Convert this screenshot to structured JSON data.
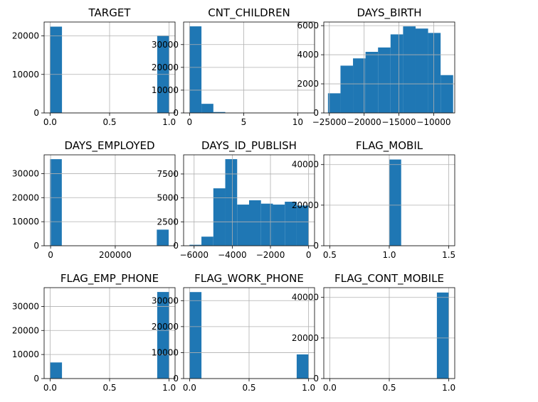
{
  "chart_data": [
    {
      "type": "bar",
      "title": "TARGET",
      "grid": true,
      "xlim": [
        -0.05,
        1.05
      ],
      "ylim": [
        0,
        23600
      ],
      "xticks": [
        {
          "value": 0,
          "label": "0.0"
        },
        {
          "value": 0.5,
          "label": "0.5"
        },
        {
          "value": 1,
          "label": "1.0"
        }
      ],
      "yticks": [
        {
          "value": 0,
          "label": "0"
        },
        {
          "value": 10000,
          "label": "10000"
        },
        {
          "value": 20000,
          "label": "20000"
        }
      ],
      "bins": [
        {
          "x0": 0,
          "x1": 0.1,
          "value": 22400
        },
        {
          "x0": 0.9,
          "x1": 1,
          "value": 20100
        }
      ]
    },
    {
      "type": "bar",
      "title": "CNT_CHILDREN",
      "grid": true,
      "xlim": [
        -0.55,
        11.55
      ],
      "ylim": [
        0,
        39900
      ],
      "xticks": [
        {
          "value": 0,
          "label": "0"
        },
        {
          "value": 5,
          "label": "5"
        },
        {
          "value": 10,
          "label": "10"
        }
      ],
      "yticks": [
        {
          "value": 0,
          "label": "0"
        },
        {
          "value": 10000,
          "label": "10000"
        },
        {
          "value": 20000,
          "label": "20000"
        },
        {
          "value": 30000,
          "label": "30000"
        }
      ],
      "bins": [
        {
          "x0": 0,
          "x1": 1.1,
          "value": 38000
        },
        {
          "x0": 1.1,
          "x1": 2.2,
          "value": 4000
        },
        {
          "x0": 2.2,
          "x1": 3.3,
          "value": 400
        },
        {
          "x0": 3.3,
          "x1": 4.4,
          "value": 40
        }
      ]
    },
    {
      "type": "bar",
      "title": "DAYS_BIRTH",
      "grid": true,
      "xlim": [
        -25800,
        -6970
      ],
      "ylim": [
        0,
        6250
      ],
      "xticks": [
        {
          "value": -25000,
          "label": "−25000"
        },
        {
          "value": -20000,
          "label": "−20000"
        },
        {
          "value": -15000,
          "label": "−15000"
        },
        {
          "value": -10000,
          "label": "−10000"
        }
      ],
      "yticks": [
        {
          "value": 0,
          "label": "0"
        },
        {
          "value": 2000,
          "label": "2000"
        },
        {
          "value": 4000,
          "label": "4000"
        },
        {
          "value": 6000,
          "label": "6000"
        }
      ],
      "bins": [
        {
          "x0": -25200,
          "x1": -23400,
          "value": 1350
        },
        {
          "x0": -23400,
          "x1": -21600,
          "value": 3250
        },
        {
          "x0": -21600,
          "x1": -19800,
          "value": 3750
        },
        {
          "x0": -19800,
          "x1": -18000,
          "value": 4200
        },
        {
          "x0": -18000,
          "x1": -16200,
          "value": 4500
        },
        {
          "x0": -16200,
          "x1": -14400,
          "value": 5400
        },
        {
          "x0": -14400,
          "x1": -12600,
          "value": 5950
        },
        {
          "x0": -12600,
          "x1": -10800,
          "value": 5800
        },
        {
          "x0": -10800,
          "x1": -9000,
          "value": 5500
        },
        {
          "x0": -9000,
          "x1": -7200,
          "value": 2600
        }
      ]
    },
    {
      "type": "bar",
      "title": "DAYS_EMPLOYED",
      "grid": true,
      "xlim": [
        -20000,
        385000
      ],
      "ylim": [
        0,
        37800
      ],
      "xticks": [
        {
          "value": 0,
          "label": "0"
        },
        {
          "value": 200000,
          "label": "200000"
        }
      ],
      "yticks": [
        {
          "value": 0,
          "label": "0"
        },
        {
          "value": 10000,
          "label": "10000"
        },
        {
          "value": 20000,
          "label": "20000"
        },
        {
          "value": 30000,
          "label": "30000"
        }
      ],
      "bins": [
        {
          "x0": -1900,
          "x1": 34700,
          "value": 36000
        },
        {
          "x0": 328500,
          "x1": 365200,
          "value": 6700
        }
      ]
    },
    {
      "type": "bar",
      "title": "DAYS_ID_PUBLISH",
      "grid": true,
      "xlim": [
        -6550,
        310
      ],
      "ylim": [
        0,
        9500
      ],
      "xticks": [
        {
          "value": -6000,
          "label": "−6000"
        },
        {
          "value": -4000,
          "label": "−4000"
        },
        {
          "value": -2000,
          "label": "−2000"
        },
        {
          "value": 0,
          "label": "0"
        }
      ],
      "yticks": [
        {
          "value": 0,
          "label": "0"
        },
        {
          "value": 2500,
          "label": "2500"
        },
        {
          "value": 5000,
          "label": "5000"
        },
        {
          "value": 7500,
          "label": "7500"
        }
      ],
      "bins": [
        {
          "x0": -6240,
          "x1": -5616,
          "value": 100
        },
        {
          "x0": -5616,
          "x1": -4992,
          "value": 950
        },
        {
          "x0": -4992,
          "x1": -4368,
          "value": 6000
        },
        {
          "x0": -4368,
          "x1": -3744,
          "value": 9050
        },
        {
          "x0": -3744,
          "x1": -3120,
          "value": 4300
        },
        {
          "x0": -3120,
          "x1": -2496,
          "value": 4750
        },
        {
          "x0": -2496,
          "x1": -1872,
          "value": 4400
        },
        {
          "x0": -1872,
          "x1": -1248,
          "value": 4300
        },
        {
          "x0": -1248,
          "x1": -624,
          "value": 4600
        },
        {
          "x0": -624,
          "x1": 0,
          "value": 4200
        }
      ]
    },
    {
      "type": "bar",
      "title": "FLAG_MOBIL",
      "grid": true,
      "xlim": [
        0.45,
        1.55
      ],
      "ylim": [
        0,
        44800
      ],
      "xticks": [
        {
          "value": 0.5,
          "label": "0.5"
        },
        {
          "value": 1,
          "label": "1.0"
        },
        {
          "value": 1.5,
          "label": "1.5"
        }
      ],
      "yticks": [
        {
          "value": 0,
          "label": "0"
        },
        {
          "value": 20000,
          "label": "20000"
        },
        {
          "value": 40000,
          "label": "40000"
        }
      ],
      "bins": [
        {
          "x0": 1,
          "x1": 1.1,
          "value": 42500
        }
      ]
    },
    {
      "type": "bar",
      "title": "FLAG_EMP_PHONE",
      "grid": true,
      "xlim": [
        -0.05,
        1.05
      ],
      "ylim": [
        0,
        37800
      ],
      "xticks": [
        {
          "value": 0,
          "label": "0.0"
        },
        {
          "value": 0.5,
          "label": "0.5"
        },
        {
          "value": 1,
          "label": "1.0"
        }
      ],
      "yticks": [
        {
          "value": 0,
          "label": "0"
        },
        {
          "value": 10000,
          "label": "10000"
        },
        {
          "value": 20000,
          "label": "20000"
        },
        {
          "value": 30000,
          "label": "30000"
        }
      ],
      "bins": [
        {
          "x0": 0,
          "x1": 0.1,
          "value": 6700
        },
        {
          "x0": 0.9,
          "x1": 1,
          "value": 36000
        }
      ]
    },
    {
      "type": "bar",
      "title": "FLAG_WORK_PHONE",
      "grid": true,
      "xlim": [
        -0.05,
        1.05
      ],
      "ylim": [
        0,
        35000
      ],
      "xticks": [
        {
          "value": 0,
          "label": "0.0"
        },
        {
          "value": 0.5,
          "label": "0.5"
        },
        {
          "value": 1,
          "label": "1.0"
        }
      ],
      "yticks": [
        {
          "value": 0,
          "label": "0"
        },
        {
          "value": 10000,
          "label": "10000"
        },
        {
          "value": 20000,
          "label": "20000"
        },
        {
          "value": 30000,
          "label": "30000"
        }
      ],
      "bins": [
        {
          "x0": 0,
          "x1": 0.1,
          "value": 33300
        },
        {
          "x0": 0.9,
          "x1": 1,
          "value": 9300
        }
      ]
    },
    {
      "type": "bar",
      "title": "FLAG_CONT_MOBILE",
      "grid": true,
      "xlim": [
        -0.05,
        1.05
      ],
      "ylim": [
        0,
        44800
      ],
      "xticks": [
        {
          "value": 0,
          "label": "0.0"
        },
        {
          "value": 0.5,
          "label": "0.5"
        },
        {
          "value": 1,
          "label": "1.0"
        }
      ],
      "yticks": [
        {
          "value": 0,
          "label": "0"
        },
        {
          "value": 20000,
          "label": "20000"
        },
        {
          "value": 40000,
          "label": "40000"
        }
      ],
      "bins": [
        {
          "x0": 0,
          "x1": 0.1,
          "value": 50
        },
        {
          "x0": 0.9,
          "x1": 1,
          "value": 42400
        }
      ]
    }
  ],
  "colors": {
    "bar": "#1f77b4",
    "grid": "#b0b0b0",
    "axis": "#000000"
  }
}
